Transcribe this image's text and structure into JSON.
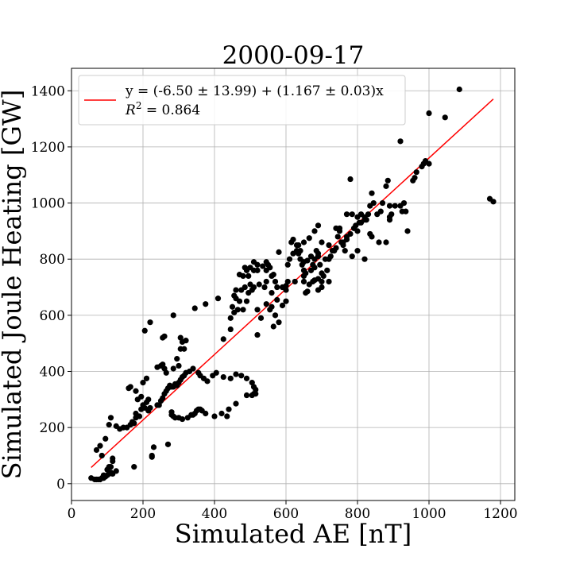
{
  "chart_data": {
    "type": "scatter",
    "title": "2000-09-17",
    "xlabel": "Simulated AE [nT]",
    "ylabel": "Simulated Joule Heating [GW]",
    "xlim": [
      0,
      1240
    ],
    "ylim": [
      -60,
      1480
    ],
    "xticks": [
      0,
      200,
      400,
      600,
      800,
      1000,
      1200
    ],
    "yticks": [
      0,
      200,
      400,
      600,
      800,
      1000,
      1200,
      1400
    ],
    "grid": true,
    "legend": {
      "placement": "upper-left",
      "line1": "y = (-6.50 ± 13.99) + (1.167 ± 0.03)x",
      "r2_prefix": "R",
      "r2_sup": "2",
      "r2_value": " = 0.864"
    },
    "fit": {
      "intercept": -6.5,
      "slope": 1.167,
      "x_range": [
        55,
        1180
      ],
      "color": "#ff0000"
    },
    "marker_color": "#000000",
    "points": [
      [
        55,
        20
      ],
      [
        65,
        15
      ],
      [
        70,
        15
      ],
      [
        75,
        15
      ],
      [
        80,
        15
      ],
      [
        85,
        20
      ],
      [
        90,
        20
      ],
      [
        95,
        25
      ],
      [
        100,
        30
      ],
      [
        105,
        35
      ],
      [
        110,
        40
      ],
      [
        115,
        35
      ],
      [
        125,
        45
      ],
      [
        110,
        60
      ],
      [
        115,
        80
      ],
      [
        115,
        90
      ],
      [
        105,
        60
      ],
      [
        100,
        50
      ],
      [
        90,
        30
      ],
      [
        85,
        100
      ],
      [
        70,
        120
      ],
      [
        80,
        135
      ],
      [
        95,
        160
      ],
      [
        105,
        210
      ],
      [
        110,
        235
      ],
      [
        125,
        205
      ],
      [
        135,
        195
      ],
      [
        145,
        200
      ],
      [
        155,
        200
      ],
      [
        165,
        210
      ],
      [
        170,
        220
      ],
      [
        175,
        215
      ],
      [
        180,
        235
      ],
      [
        190,
        240
      ],
      [
        195,
        265
      ],
      [
        200,
        280
      ],
      [
        205,
        270
      ],
      [
        210,
        290
      ],
      [
        215,
        300
      ],
      [
        215,
        260
      ],
      [
        220,
        270
      ],
      [
        175,
        60
      ],
      [
        225,
        95
      ],
      [
        230,
        130
      ],
      [
        180,
        250
      ],
      [
        185,
        300
      ],
      [
        180,
        330
      ],
      [
        160,
        340
      ],
      [
        165,
        345
      ],
      [
        200,
        360
      ],
      [
        210,
        375
      ],
      [
        195,
        310
      ],
      [
        240,
        280
      ],
      [
        245,
        280
      ],
      [
        250,
        295
      ],
      [
        255,
        305
      ],
      [
        260,
        320
      ],
      [
        265,
        330
      ],
      [
        270,
        340
      ],
      [
        275,
        350
      ],
      [
        280,
        345
      ],
      [
        285,
        345
      ],
      [
        290,
        355
      ],
      [
        295,
        350
      ],
      [
        300,
        360
      ],
      [
        305,
        370
      ],
      [
        310,
        380
      ],
      [
        315,
        385
      ],
      [
        320,
        395
      ],
      [
        330,
        400
      ],
      [
        340,
        410
      ],
      [
        355,
        395
      ],
      [
        360,
        385
      ],
      [
        370,
        375
      ],
      [
        380,
        365
      ],
      [
        395,
        385
      ],
      [
        405,
        395
      ],
      [
        425,
        380
      ],
      [
        445,
        375
      ],
      [
        460,
        390
      ],
      [
        475,
        385
      ],
      [
        490,
        375
      ],
      [
        505,
        360
      ],
      [
        510,
        345
      ],
      [
        515,
        335
      ],
      [
        515,
        320
      ],
      [
        505,
        315
      ],
      [
        490,
        315
      ],
      [
        460,
        285
      ],
      [
        440,
        265
      ],
      [
        435,
        240
      ],
      [
        420,
        250
      ],
      [
        400,
        240
      ],
      [
        375,
        250
      ],
      [
        365,
        260
      ],
      [
        360,
        265
      ],
      [
        355,
        265
      ],
      [
        350,
        260
      ],
      [
        345,
        250
      ],
      [
        340,
        245
      ],
      [
        335,
        245
      ],
      [
        325,
        235
      ],
      [
        310,
        230
      ],
      [
        300,
        235
      ],
      [
        290,
        235
      ],
      [
        285,
        240
      ],
      [
        280,
        245
      ],
      [
        280,
        255
      ],
      [
        270,
        140
      ],
      [
        225,
        100
      ],
      [
        240,
        415
      ],
      [
        250,
        420
      ],
      [
        255,
        425
      ],
      [
        260,
        410
      ],
      [
        265,
        395
      ],
      [
        285,
        410
      ],
      [
        300,
        420
      ],
      [
        295,
        445
      ],
      [
        305,
        480
      ],
      [
        315,
        480
      ],
      [
        310,
        505
      ],
      [
        320,
        510
      ],
      [
        305,
        520
      ],
      [
        255,
        520
      ],
      [
        260,
        525
      ],
      [
        205,
        545
      ],
      [
        220,
        575
      ],
      [
        285,
        600
      ],
      [
        345,
        625
      ],
      [
        375,
        640
      ],
      [
        410,
        660
      ],
      [
        425,
        515
      ],
      [
        445,
        550
      ],
      [
        445,
        590
      ],
      [
        455,
        610
      ],
      [
        450,
        630
      ],
      [
        465,
        620
      ],
      [
        460,
        660
      ],
      [
        470,
        650
      ],
      [
        480,
        620
      ],
      [
        490,
        650
      ],
      [
        495,
        680
      ],
      [
        505,
        690
      ],
      [
        500,
        710
      ],
      [
        495,
        740
      ],
      [
        510,
        760
      ],
      [
        510,
        790
      ],
      [
        520,
        760
      ],
      [
        485,
        770
      ],
      [
        480,
        740
      ],
      [
        470,
        745
      ],
      [
        460,
        690
      ],
      [
        455,
        670
      ],
      [
        475,
        690
      ],
      [
        485,
        700
      ],
      [
        510,
        700
      ],
      [
        525,
        710
      ],
      [
        540,
        700
      ],
      [
        545,
        720
      ],
      [
        545,
        760
      ],
      [
        550,
        780
      ],
      [
        555,
        770
      ],
      [
        560,
        740
      ],
      [
        565,
        745
      ],
      [
        570,
        720
      ],
      [
        575,
        700
      ],
      [
        560,
        680
      ],
      [
        545,
        640
      ],
      [
        555,
        620
      ],
      [
        570,
        600
      ],
      [
        580,
        575
      ],
      [
        565,
        560
      ],
      [
        530,
        590
      ],
      [
        520,
        530
      ],
      [
        520,
        620
      ],
      [
        590,
        635
      ],
      [
        600,
        650
      ],
      [
        600,
        690
      ],
      [
        600,
        705
      ],
      [
        605,
        780
      ],
      [
        610,
        800
      ],
      [
        620,
        820
      ],
      [
        615,
        860
      ],
      [
        620,
        870
      ],
      [
        630,
        850
      ],
      [
        635,
        850
      ],
      [
        635,
        820
      ],
      [
        640,
        800
      ],
      [
        645,
        780
      ],
      [
        650,
        790
      ],
      [
        650,
        760
      ],
      [
        655,
        750
      ],
      [
        650,
        740
      ],
      [
        650,
        720
      ],
      [
        655,
        680
      ],
      [
        660,
        685
      ],
      [
        665,
        710
      ],
      [
        670,
        760
      ],
      [
        675,
        780
      ],
      [
        680,
        770
      ],
      [
        680,
        800
      ],
      [
        685,
        830
      ],
      [
        690,
        820
      ],
      [
        695,
        780
      ],
      [
        700,
        750
      ],
      [
        690,
        730
      ],
      [
        675,
        720
      ],
      [
        680,
        725
      ],
      [
        690,
        690
      ],
      [
        700,
        720
      ],
      [
        705,
        740
      ],
      [
        715,
        760
      ],
      [
        720,
        800
      ],
      [
        725,
        810
      ],
      [
        735,
        830
      ],
      [
        740,
        840
      ],
      [
        745,
        880
      ],
      [
        750,
        900
      ],
      [
        755,
        860
      ],
      [
        760,
        860
      ],
      [
        765,
        830
      ],
      [
        770,
        870
      ],
      [
        780,
        890
      ],
      [
        790,
        910
      ],
      [
        795,
        920
      ],
      [
        800,
        900
      ],
      [
        805,
        930
      ],
      [
        810,
        960
      ],
      [
        820,
        940
      ],
      [
        825,
        940
      ],
      [
        830,
        960
      ],
      [
        835,
        990
      ],
      [
        840,
        1035
      ],
      [
        845,
        1000
      ],
      [
        855,
        960
      ],
      [
        865,
        970
      ],
      [
        870,
        1000
      ],
      [
        880,
        1060
      ],
      [
        885,
        1080
      ],
      [
        890,
        990
      ],
      [
        895,
        960
      ],
      [
        890,
        940
      ],
      [
        905,
        990
      ],
      [
        920,
        990
      ],
      [
        930,
        1000
      ],
      [
        935,
        970
      ],
      [
        955,
        1080
      ],
      [
        960,
        1090
      ],
      [
        965,
        1110
      ],
      [
        980,
        1130
      ],
      [
        985,
        1140
      ],
      [
        990,
        1150
      ],
      [
        1000,
        1140
      ],
      [
        1045,
        1305
      ],
      [
        1000,
        1320
      ],
      [
        920,
        1220
      ],
      [
        1085,
        1405
      ],
      [
        1170,
        1015
      ],
      [
        1180,
        1005
      ],
      [
        800,
        950
      ],
      [
        810,
        930
      ],
      [
        820,
        950
      ],
      [
        835,
        890
      ],
      [
        840,
        880
      ],
      [
        770,
        880
      ],
      [
        740,
        910
      ],
      [
        720,
        850
      ],
      [
        700,
        860
      ],
      [
        680,
        900
      ],
      [
        665,
        875
      ],
      [
        650,
        860
      ],
      [
        640,
        830
      ],
      [
        630,
        830
      ],
      [
        560,
        630
      ],
      [
        575,
        655
      ],
      [
        590,
        700
      ],
      [
        700,
        700
      ],
      [
        720,
        720
      ],
      [
        880,
        860
      ],
      [
        860,
        860
      ],
      [
        800,
        830
      ],
      [
        785,
        810
      ],
      [
        760,
        850
      ],
      [
        730,
        830
      ],
      [
        710,
        800
      ],
      [
        690,
        810
      ],
      [
        670,
        810
      ],
      [
        660,
        795
      ],
      [
        605,
        720
      ],
      [
        625,
        720
      ],
      [
        490,
        760
      ],
      [
        500,
        770
      ],
      [
        520,
        780
      ],
      [
        535,
        775
      ],
      [
        545,
        790
      ],
      [
        580,
        825
      ],
      [
        780,
        1085
      ],
      [
        690,
        920
      ],
      [
        785,
        960
      ],
      [
        925,
        970
      ],
      [
        940,
        900
      ],
      [
        890,
        950
      ],
      [
        750,
        910
      ],
      [
        770,
        960
      ],
      [
        820,
        800
      ],
      [
        510,
        320
      ]
    ]
  }
}
